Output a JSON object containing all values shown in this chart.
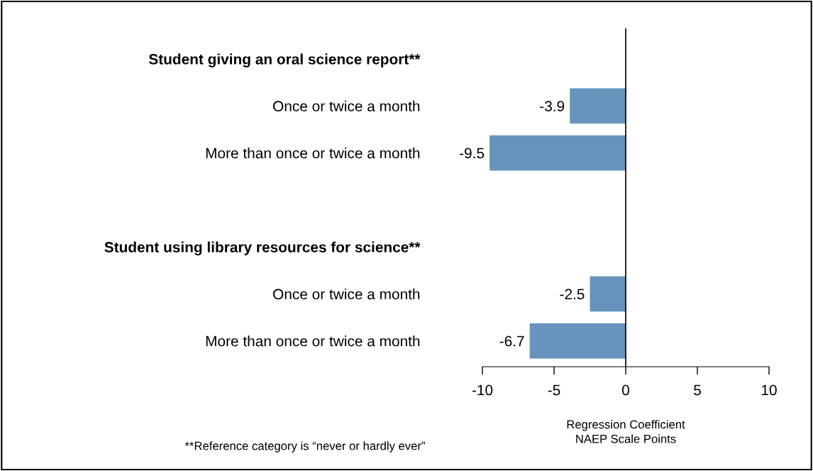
{
  "chart_data": {
    "type": "bar",
    "orientation": "horizontal",
    "categories": [
      "Student giving an oral science report**",
      "Once or twice a month",
      "More than once or twice a month",
      null,
      "Student using library resources for science**",
      "Once or twice a month",
      "More than once or twice a month"
    ],
    "values": [
      null,
      -3.9,
      -9.5,
      null,
      null,
      -2.5,
      -6.7
    ],
    "color": "#6694bf",
    "data_labels": true,
    "xlim": [
      -10,
      10
    ],
    "xticks": [
      -10,
      -5,
      0,
      5,
      10
    ],
    "xlabel": "Regression Coefficient\nNAEP Scale Points",
    "ref_lines": [
      {
        "axis": "x",
        "value": 0,
        "color": "#000000"
      }
    ],
    "grid": false,
    "annotations": [
      "**Reference category is “never or hardly ever”"
    ]
  }
}
